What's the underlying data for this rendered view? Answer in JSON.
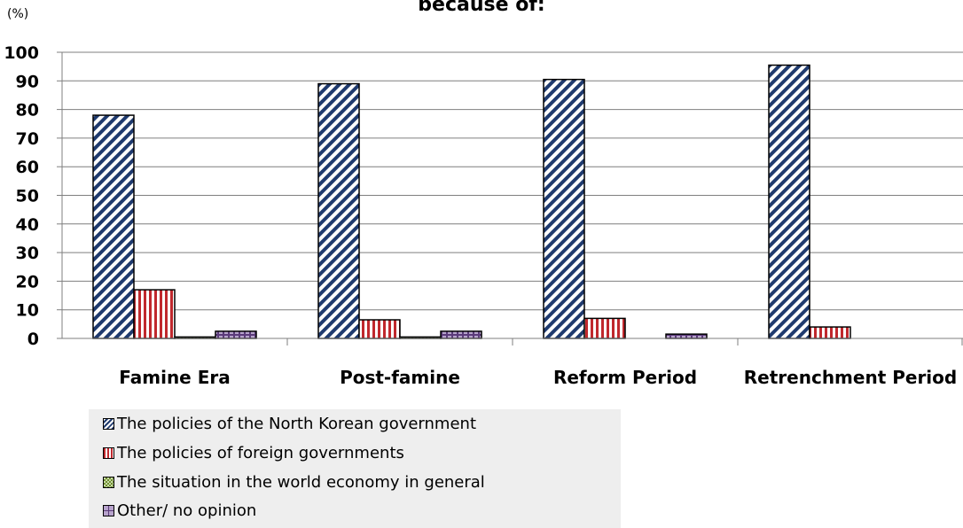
{
  "chart_data": {
    "type": "bar",
    "title": "because of:",
    "ylabel": "(%)",
    "xlabel": "",
    "ylim": [
      0,
      100
    ],
    "yticks": [
      0,
      10,
      20,
      30,
      40,
      50,
      60,
      70,
      80,
      90,
      100
    ],
    "grid": true,
    "legend_position": "bottom-left",
    "categories": [
      "Famine Era",
      "Post-famine",
      "Reform Period",
      "Retrenchment Period"
    ],
    "series": [
      {
        "name": "The policies of the North Korean government",
        "values": [
          78,
          89,
          90.5,
          95.5
        ],
        "color": "#1f3a6e",
        "pattern": "diagonal-stripes"
      },
      {
        "name": "The policies of foreign governments",
        "values": [
          17,
          6.5,
          7,
          4
        ],
        "color": "#c0282d",
        "pattern": "vertical-stripes"
      },
      {
        "name": "The situation in the world economy in general",
        "values": [
          0.5,
          0.5,
          0,
          0
        ],
        "color": "#6f8f2f",
        "pattern": "checker"
      },
      {
        "name": "Other/ no opinion",
        "values": [
          2.5,
          2.5,
          1.5,
          0
        ],
        "color": "#5b3b7a",
        "pattern": "grid"
      }
    ]
  }
}
